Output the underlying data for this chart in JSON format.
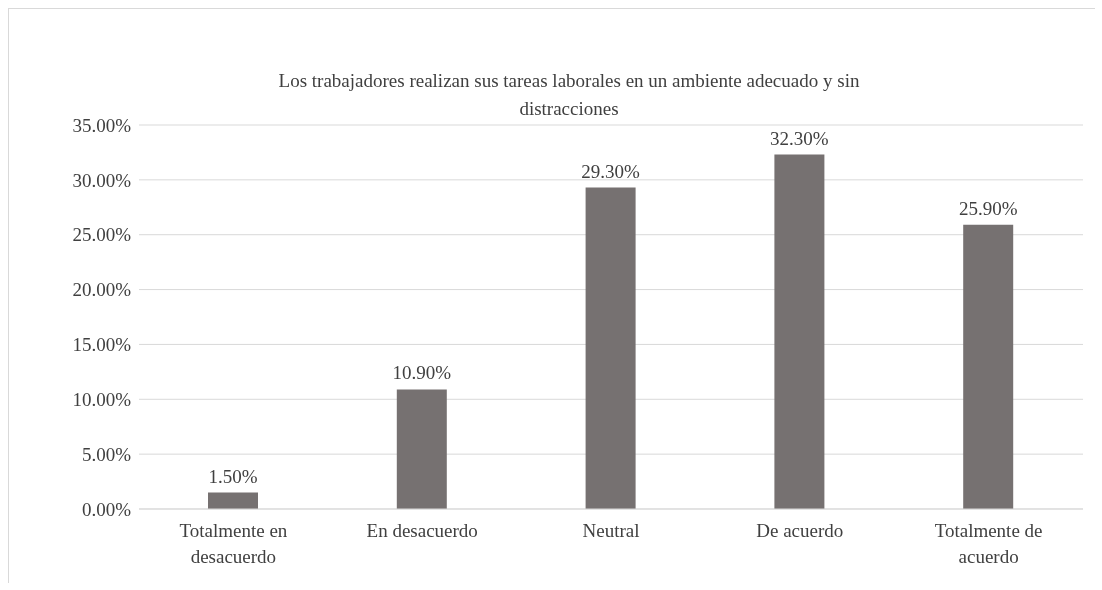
{
  "chart_data": {
    "type": "bar",
    "title": "Los trabajadores realizan sus tareas laborales en un ambiente adecuado y sin distracciones",
    "categories": [
      "Totalmente en desacuerdo",
      "En desacuerdo",
      "Neutral",
      "De acuerdo",
      "Totalmente de acuerdo"
    ],
    "values": [
      1.5,
      10.9,
      29.3,
      32.3,
      25.9
    ],
    "value_labels": [
      "1.50%",
      "10.90%",
      "29.30%",
      "32.30%",
      "25.90%"
    ],
    "color": "#767171",
    "ylim": [
      0,
      35
    ],
    "yticks": [
      {
        "value": 0,
        "label": "0.00%"
      },
      {
        "value": 5,
        "label": "5.00%"
      },
      {
        "value": 10,
        "label": "10.00%"
      },
      {
        "value": 15,
        "label": "15.00%"
      },
      {
        "value": 20,
        "label": "20.00%"
      },
      {
        "value": 25,
        "label": "25.00%"
      },
      {
        "value": 30,
        "label": "30.00%"
      },
      {
        "value": 35,
        "label": "35.00%"
      }
    ],
    "grid": "y"
  }
}
